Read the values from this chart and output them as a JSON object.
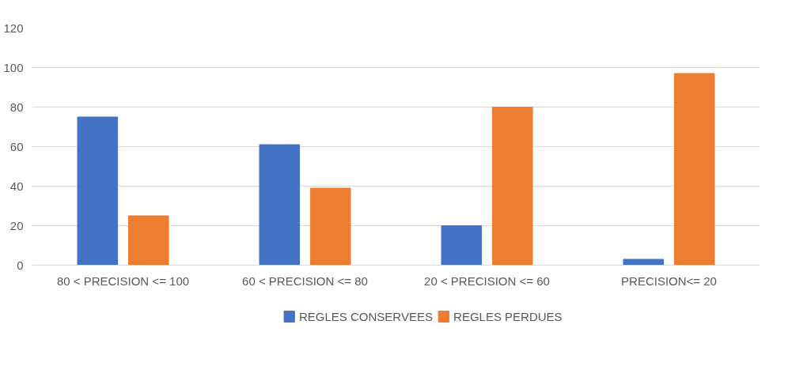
{
  "chart_data": {
    "type": "bar",
    "categories": [
      "80 < PRECISION <= 100",
      "60 < PRECISION <= 80",
      "20 < PRECISION <= 60",
      "PRECISION<= 20"
    ],
    "series": [
      {
        "name": "REGLES CONSERVEES",
        "color": "#4472c4",
        "values": [
          75,
          61,
          20,
          3
        ]
      },
      {
        "name": "REGLES PERDUES",
        "color": "#ed7d31",
        "values": [
          25,
          39,
          80,
          97
        ]
      }
    ],
    "ylim": [
      0,
      120
    ],
    "yticks": [
      0,
      20,
      40,
      60,
      80,
      100,
      120
    ],
    "grid": "y",
    "legend": "bottom"
  }
}
